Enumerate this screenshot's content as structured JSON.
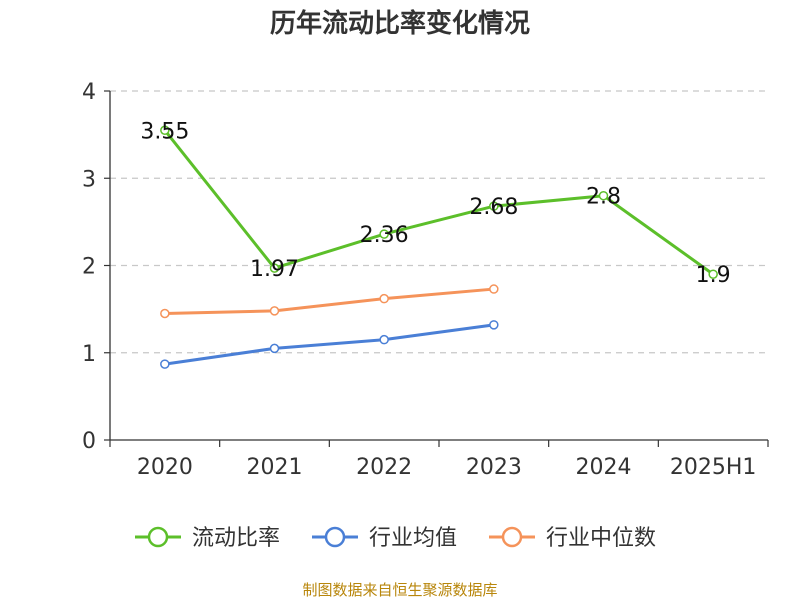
{
  "chart_data": {
    "type": "line",
    "title": "历年流动比率变化情况",
    "categories": [
      "2020",
      "2021",
      "2022",
      "2023",
      "2024",
      "2025H1"
    ],
    "ylim": [
      0,
      4
    ],
    "yticks": [
      "0",
      "1",
      "2",
      "3",
      "4"
    ],
    "grid": "horizontal dashed",
    "legend_position": "bottom",
    "series": [
      {
        "name": "流动比率",
        "color": "#5cbf2a",
        "values": [
          3.55,
          1.97,
          2.36,
          2.68,
          2.8,
          1.9
        ],
        "labels": [
          "3.55",
          "1.97",
          "2.36",
          "2.68",
          "2.8",
          "1.9"
        ]
      },
      {
        "name": "行业均值",
        "color": "#4a7fd6",
        "values": [
          0.87,
          1.05,
          1.15,
          1.32,
          null,
          null
        ]
      },
      {
        "name": "行业中位数",
        "color": "#f5935a",
        "values": [
          1.45,
          1.48,
          1.62,
          1.73,
          null,
          null
        ]
      }
    ],
    "source": "制图数据来自恒生聚源数据库"
  }
}
